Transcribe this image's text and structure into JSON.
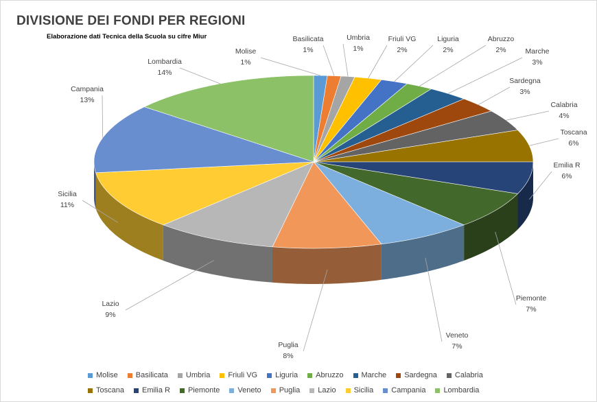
{
  "chart_data": {
    "type": "pie",
    "title": "DIVISIONE DEI FONDI PER REGIONI",
    "subtitle": "Elaborazione dati Tecnica della Scuola su cifre Miur",
    "style": "3d-pie",
    "legend_position": "bottom",
    "slices": [
      {
        "label": "Molise",
        "value": 1,
        "pct_label": "1%",
        "color": "#5b9bd5"
      },
      {
        "label": "Basilicata",
        "value": 1,
        "pct_label": "1%",
        "color": "#ed7d31"
      },
      {
        "label": "Umbria",
        "value": 1,
        "pct_label": "1%",
        "color": "#a5a5a5"
      },
      {
        "label": "Friuli VG",
        "value": 2,
        "pct_label": "2%",
        "color": "#ffc000"
      },
      {
        "label": "Liguria",
        "value": 2,
        "pct_label": "2%",
        "color": "#4472c4"
      },
      {
        "label": "Abruzzo",
        "value": 2,
        "pct_label": "2%",
        "color": "#70ad47"
      },
      {
        "label": "Marche",
        "value": 3,
        "pct_label": "3%",
        "color": "#255e91"
      },
      {
        "label": "Sardegna",
        "value": 3,
        "pct_label": "3%",
        "color": "#9e480e"
      },
      {
        "label": "Calabria",
        "value": 4,
        "pct_label": "4%",
        "color": "#636363"
      },
      {
        "label": "Toscana",
        "value": 6,
        "pct_label": "6%",
        "color": "#997300"
      },
      {
        "label": "Emilia R",
        "value": 6,
        "pct_label": "6%",
        "color": "#264478"
      },
      {
        "label": "Piemonte",
        "value": 7,
        "pct_label": "7%",
        "color": "#43682b"
      },
      {
        "label": "Veneto",
        "value": 7,
        "pct_label": "7%",
        "color": "#7cafdd"
      },
      {
        "label": "Puglia",
        "value": 8,
        "pct_label": "8%",
        "color": "#f1975a"
      },
      {
        "label": "Lazio",
        "value": 9,
        "pct_label": "9%",
        "color": "#b7b7b7"
      },
      {
        "label": "Sicilia",
        "value": 11,
        "pct_label": "11%",
        "color": "#ffcd33"
      },
      {
        "label": "Campania",
        "value": 13,
        "pct_label": "13%",
        "color": "#698ed0"
      },
      {
        "label": "Lombardia",
        "value": 14,
        "pct_label": "14%",
        "color": "#8cc168"
      }
    ]
  }
}
